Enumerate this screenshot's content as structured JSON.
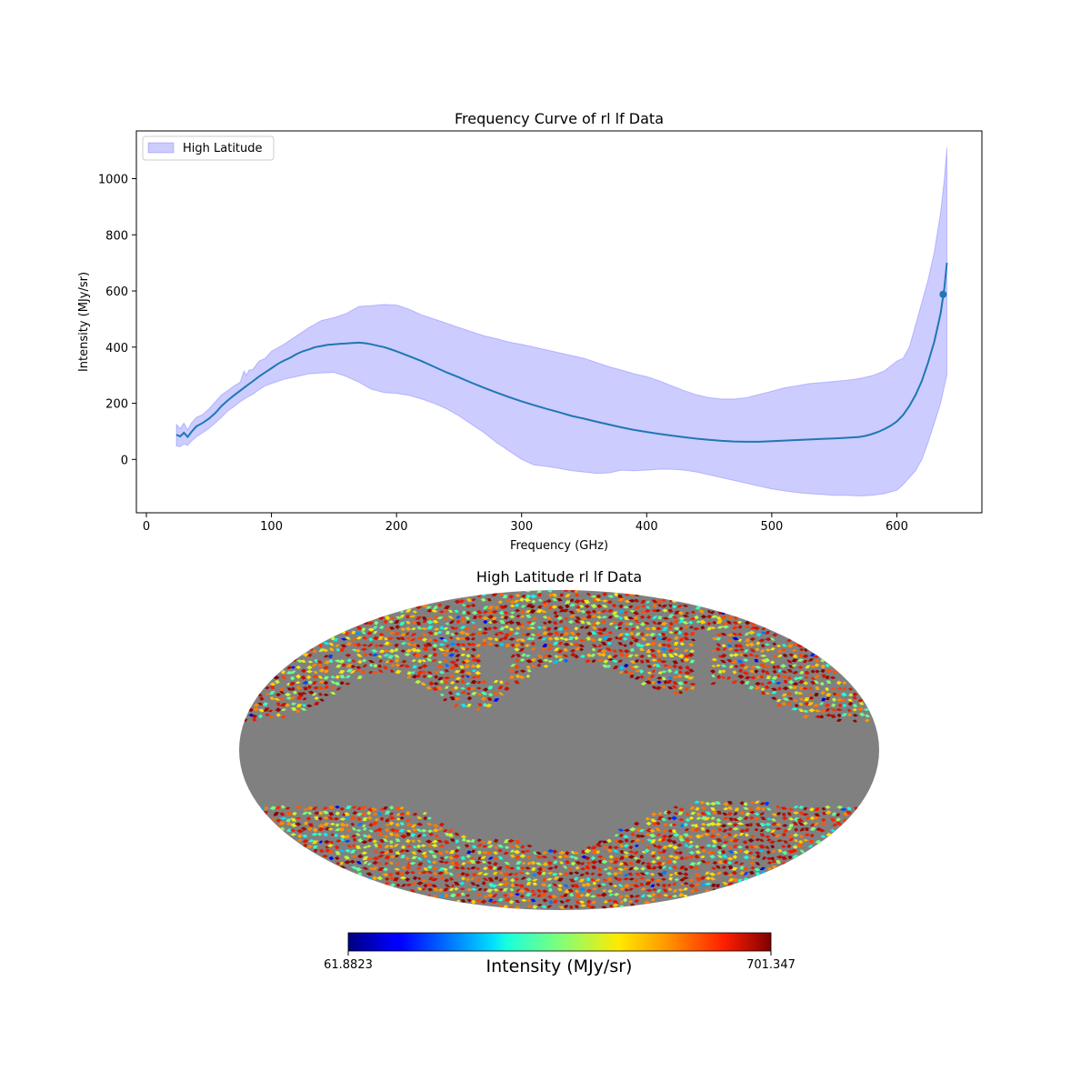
{
  "chart_data": [
    {
      "type": "line",
      "title": "Frequency Curve of rl lf Data",
      "xlabel": "Frequency (GHz)",
      "ylabel": "Intensity (MJy/sr)",
      "xlim": [
        -8,
        668
      ],
      "ylim": [
        -190,
        1170
      ],
      "xticks": [
        0,
        100,
        200,
        300,
        400,
        500,
        600
      ],
      "yticks": [
        0,
        200,
        400,
        600,
        800,
        1000
      ],
      "grid": false,
      "legend": {
        "placement": "top-left",
        "entries": [
          "High Latitude"
        ]
      },
      "colors": {
        "line": "#1f77b4",
        "band": "#0000ff"
      },
      "series": [
        {
          "kind": "mean_line",
          "x": [
            24,
            27,
            30,
            33,
            36,
            40,
            45,
            50,
            55,
            60,
            65,
            70,
            75,
            80,
            85,
            90,
            95,
            100,
            105,
            110,
            115,
            120,
            125,
            130,
            135,
            140,
            145,
            150,
            155,
            160,
            165,
            170,
            175,
            180,
            185,
            190,
            195,
            200,
            210,
            220,
            230,
            240,
            250,
            260,
            270,
            280,
            290,
            300,
            310,
            320,
            330,
            340,
            350,
            360,
            370,
            380,
            390,
            400,
            410,
            420,
            430,
            440,
            450,
            460,
            470,
            480,
            490,
            500,
            510,
            520,
            530,
            540,
            550,
            560,
            570,
            575,
            580,
            585,
            590,
            595,
            600,
            605,
            610,
            615,
            620,
            625,
            630,
            635,
            638,
            640
          ],
          "y": [
            88,
            82,
            95,
            80,
            98,
            118,
            130,
            145,
            165,
            190,
            210,
            228,
            245,
            262,
            278,
            295,
            310,
            325,
            340,
            352,
            362,
            375,
            385,
            392,
            400,
            404,
            408,
            410,
            412,
            413,
            415,
            416,
            414,
            410,
            405,
            400,
            393,
            385,
            368,
            350,
            330,
            310,
            292,
            273,
            255,
            238,
            222,
            207,
            193,
            180,
            168,
            155,
            145,
            134,
            124,
            114,
            105,
            98,
            91,
            85,
            79,
            74,
            70,
            66,
            64,
            63,
            63,
            65,
            67,
            69,
            71,
            73,
            75,
            77,
            80,
            84,
            90,
            98,
            108,
            120,
            135,
            158,
            190,
            230,
            280,
            345,
            420,
            520,
            610,
            700
          ]
        },
        {
          "kind": "band_upper",
          "x": [
            24,
            27,
            30,
            33,
            36,
            40,
            45,
            50,
            55,
            60,
            65,
            70,
            75,
            78,
            80,
            82,
            85,
            90,
            95,
            100,
            110,
            120,
            130,
            140,
            150,
            160,
            170,
            180,
            190,
            200,
            210,
            220,
            230,
            240,
            250,
            260,
            270,
            280,
            290,
            300,
            310,
            320,
            330,
            340,
            350,
            360,
            370,
            380,
            390,
            400,
            410,
            420,
            430,
            440,
            450,
            460,
            470,
            480,
            490,
            500,
            510,
            520,
            530,
            540,
            550,
            560,
            570,
            580,
            590,
            600,
            605,
            610,
            615,
            620,
            625,
            630,
            635,
            638,
            640
          ],
          "y": [
            125,
            110,
            130,
            105,
            130,
            150,
            160,
            180,
            205,
            230,
            245,
            262,
            275,
            315,
            300,
            318,
            320,
            350,
            360,
            385,
            410,
            440,
            470,
            495,
            505,
            520,
            545,
            548,
            552,
            550,
            535,
            515,
            500,
            485,
            470,
            455,
            440,
            430,
            418,
            410,
            400,
            390,
            380,
            370,
            360,
            345,
            330,
            318,
            305,
            295,
            280,
            262,
            245,
            230,
            220,
            215,
            215,
            220,
            232,
            243,
            255,
            262,
            270,
            274,
            278,
            282,
            288,
            298,
            315,
            350,
            360,
            400,
            480,
            560,
            640,
            740,
            880,
            1000,
            1110
          ]
        },
        {
          "kind": "band_lower",
          "x": [
            24,
            27,
            30,
            33,
            36,
            40,
            45,
            50,
            55,
            60,
            65,
            70,
            75,
            80,
            85,
            90,
            95,
            100,
            110,
            120,
            130,
            140,
            150,
            160,
            170,
            180,
            190,
            200,
            210,
            220,
            230,
            240,
            250,
            260,
            270,
            280,
            290,
            300,
            310,
            320,
            330,
            340,
            350,
            360,
            370,
            380,
            390,
            400,
            410,
            420,
            430,
            440,
            450,
            460,
            470,
            480,
            490,
            500,
            510,
            520,
            530,
            540,
            550,
            560,
            570,
            580,
            590,
            600,
            605,
            610,
            615,
            620,
            625,
            630,
            635,
            638,
            640
          ],
          "y": [
            48,
            45,
            55,
            50,
            65,
            80,
            95,
            110,
            130,
            150,
            172,
            188,
            205,
            220,
            232,
            248,
            262,
            270,
            285,
            295,
            305,
            308,
            310,
            295,
            275,
            250,
            238,
            235,
            228,
            215,
            200,
            180,
            155,
            125,
            95,
            60,
            30,
            0,
            -20,
            -25,
            -32,
            -40,
            -45,
            -50,
            -48,
            -38,
            -40,
            -38,
            -35,
            -35,
            -38,
            -45,
            -55,
            -65,
            -75,
            -85,
            -95,
            -105,
            -112,
            -118,
            -122,
            -125,
            -128,
            -128,
            -130,
            -128,
            -122,
            -110,
            -90,
            -65,
            -40,
            0,
            60,
            130,
            200,
            260,
            300
          ]
        }
      ],
      "annotations": [
        {
          "kind": "marker",
          "x": 637,
          "y": 588
        }
      ]
    },
    {
      "type": "heatmap",
      "title": "High Latitude rl lf Data",
      "projection": "mollweide",
      "masked_color": "#808080",
      "colormap": "jet",
      "colorbar": {
        "label": "Intensity (MJy/sr)",
        "min": 61.8823,
        "max": 701.347,
        "min_label": "61.8823",
        "max_label": "701.347"
      }
    }
  ]
}
